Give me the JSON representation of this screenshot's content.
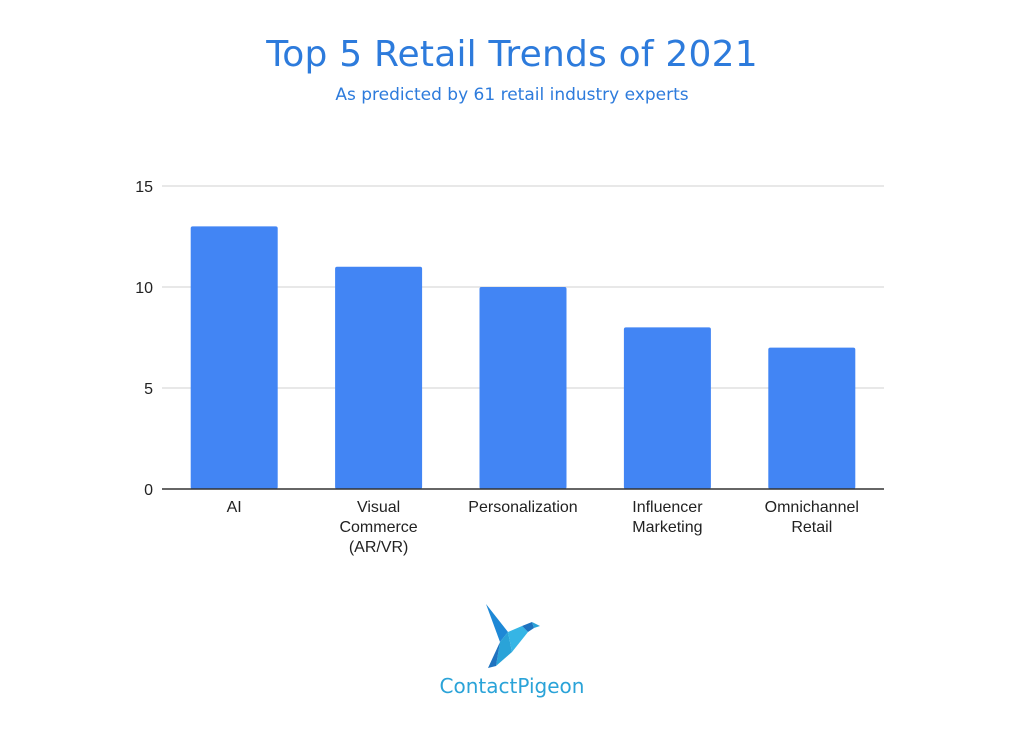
{
  "chart_data": {
    "type": "bar",
    "title": "Top 5 Retail Trends of 2021",
    "subtitle": "As predicted by 61 retail industry experts",
    "categories": [
      [
        "AI"
      ],
      [
        "Visual",
        "Commerce",
        "(AR/VR)"
      ],
      [
        "Personalization"
      ],
      [
        "Influencer",
        "Marketing"
      ],
      [
        "Omnichannel",
        "Retail"
      ]
    ],
    "values": [
      13,
      11,
      10,
      8,
      7
    ],
    "ylim": [
      0,
      15
    ],
    "yticks": [
      "0",
      "5",
      "10",
      "15"
    ],
    "grid": true,
    "bar_color": "#4285f4"
  },
  "logo": {
    "text": "ContactPigeon",
    "color": "#2aa3d8"
  }
}
